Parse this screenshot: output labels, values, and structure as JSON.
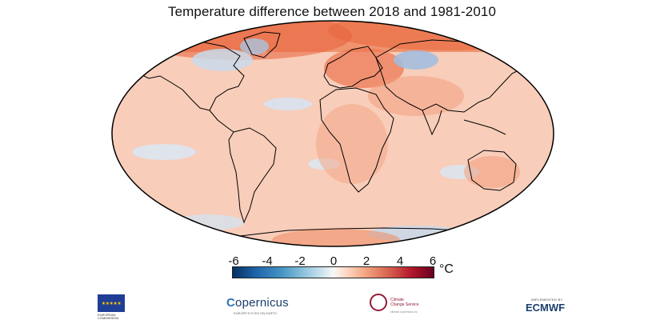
{
  "title": "Temperature difference between 2018 and 1981-2010",
  "colorbar": {
    "ticks": [
      "-6",
      "-4",
      "-2",
      "0",
      "2",
      "4",
      "6"
    ],
    "tick_values": [
      -6,
      -4,
      -2,
      0,
      2,
      4,
      6
    ],
    "unit": "°C",
    "range": [
      -6,
      6
    ],
    "colors": [
      "#053061",
      "#2166ac",
      "#4393c3",
      "#92c5de",
      "#d1e5f0",
      "#f7f7f7",
      "#fddbc7",
      "#f4a582",
      "#d6604d",
      "#b2182b",
      "#67001f"
    ]
  },
  "map": {
    "projection": "Robinson-like global",
    "dominant_color": "#f6b8a0",
    "warm_color": "#ee7a52",
    "cool_color": "#c8dbee",
    "ocean_base": "#f8d2c2"
  },
  "logos": {
    "eu_flag_stars": "★★★★★",
    "eu_caption": "EUROPEAN COMMISSION",
    "copernicus_c": "C",
    "copernicus_rest": "opernicus",
    "copernicus_tag": "EUROPE'S EYES ON EARTH",
    "c3s_line1": "Climate",
    "c3s_line2": "Change Service",
    "c3s_tag": "climate.copernicus.eu",
    "ecmwf_top": "IMPLEMENTED BY",
    "ecmwf": "ECMWF"
  }
}
